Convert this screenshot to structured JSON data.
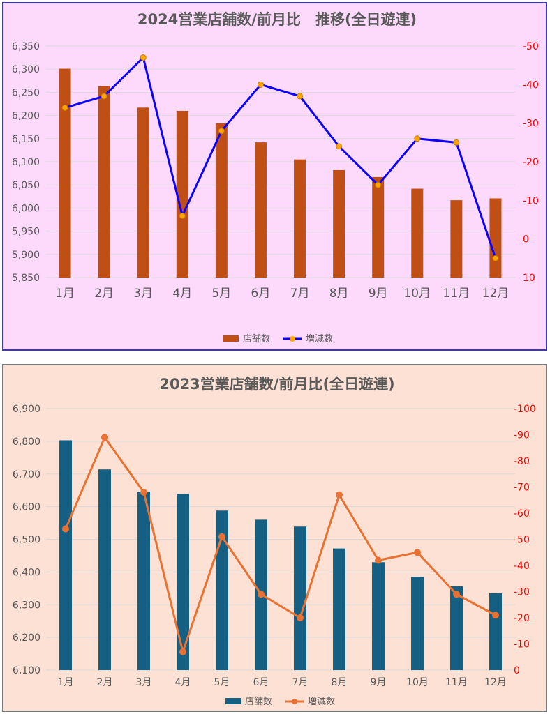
{
  "chart_data": [
    {
      "type": "bar",
      "title": "2024営業店舗数/前月比　推移(全日遊連)",
      "categories": [
        "1月",
        "2月",
        "3月",
        "4月",
        "5月",
        "6月",
        "7月",
        "8月",
        "9月",
        "10月",
        "11月",
        "12月"
      ],
      "series": [
        {
          "name": "店舗数",
          "axis": "left",
          "kind": "bar",
          "color": "#c04f15",
          "values": [
            6301,
            6263,
            6217,
            6210,
            6183,
            6142,
            6105,
            6082,
            6067,
            6042,
            6017,
            6021
          ]
        },
        {
          "name": "増減数",
          "axis": "right",
          "kind": "line",
          "color": "#0b00ff",
          "marker_color": "#ffa500",
          "values": [
            -34,
            -37,
            -47,
            -6,
            -28,
            -40,
            -37,
            -24,
            -14,
            -26,
            -25,
            5
          ]
        }
      ],
      "y_left": {
        "min": 5850,
        "max": 6350,
        "step": 50,
        "ticks": [
          "5,850",
          "5,900",
          "5,950",
          "6,000",
          "6,050",
          "6,100",
          "6,150",
          "6,200",
          "6,250",
          "6,300",
          "6,350"
        ]
      },
      "y_right": {
        "min": -50,
        "max": 10,
        "step": 10,
        "reversed": true,
        "ticks": [
          "-50",
          "-40",
          "-30",
          "-20",
          "-10",
          "0",
          "10"
        ]
      },
      "legend": {
        "position": "bottom",
        "entries": [
          "店舗数",
          "増減数"
        ]
      },
      "grid": true
    },
    {
      "type": "bar",
      "title": "2023営業店舗数/前月比(全日遊連)",
      "categories": [
        "1月",
        "2月",
        "3月",
        "4月",
        "5月",
        "6月",
        "7月",
        "8月",
        "9月",
        "10月",
        "11月",
        "12月"
      ],
      "series": [
        {
          "name": "店舗数",
          "axis": "left",
          "kind": "bar",
          "color": "#156082",
          "values": [
            6803,
            6714,
            6646,
            6639,
            6588,
            6560,
            6539,
            6472,
            6430,
            6385,
            6356,
            6335
          ]
        },
        {
          "name": "増減数",
          "axis": "right",
          "kind": "line",
          "color": "#e97132",
          "marker_color": "#e97132",
          "values": [
            -54,
            -89,
            -68,
            -7,
            -51,
            -29,
            -20,
            -67,
            -42,
            -45,
            -29,
            -21
          ]
        }
      ],
      "y_left": {
        "min": 6100,
        "max": 6900,
        "step": 100,
        "ticks": [
          "6,100",
          "6,200",
          "6,300",
          "6,400",
          "6,500",
          "6,600",
          "6,700",
          "6,800",
          "6,900"
        ]
      },
      "y_right": {
        "min": -100,
        "max": 0,
        "step": 10,
        "reversed": true,
        "ticks": [
          "-100",
          "-90",
          "-80",
          "-70",
          "-60",
          "-50",
          "-40",
          "-30",
          "-20",
          "-10",
          "0"
        ]
      },
      "legend": {
        "position": "bottom",
        "entries": [
          "店舗数",
          "増減数"
        ]
      },
      "grid": true
    }
  ]
}
